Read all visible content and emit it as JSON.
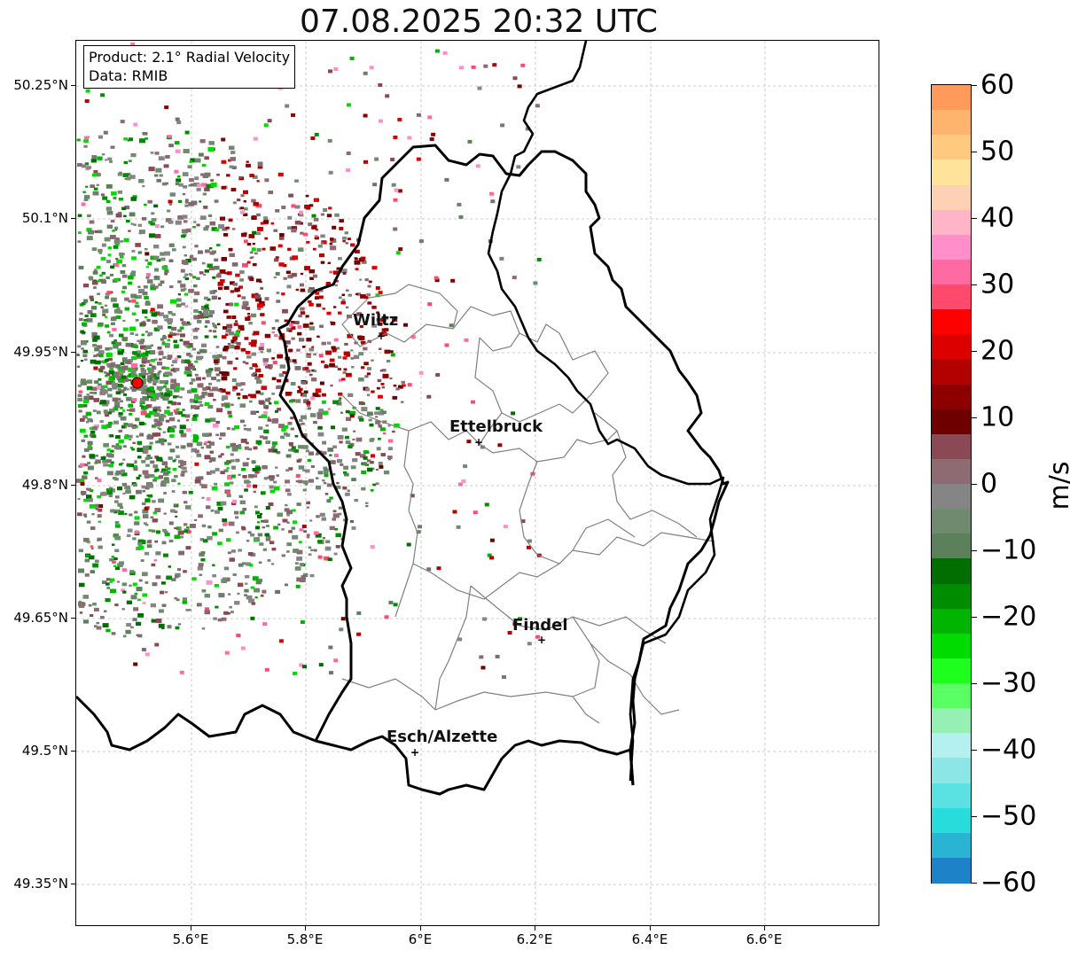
{
  "title": "07.08.2025 20:32 UTC",
  "info": {
    "product": "Product: 2.1° Radial Velocity",
    "data": "Data: RMIB"
  },
  "axes": {
    "lat_labels": [
      "50.25°N",
      "50.1°N",
      "49.95°N",
      "49.8°N",
      "49.65°N",
      "49.5°N",
      "49.35°N"
    ],
    "lon_labels": [
      "5.6°E",
      "5.8°E",
      "6°E",
      "6.2°E",
      "6.4°E",
      "6.6°E"
    ]
  },
  "cities": [
    {
      "name": "Wiltz"
    },
    {
      "name": "Ettelbruck"
    },
    {
      "name": "Findel"
    },
    {
      "name": "Esch/Alzette"
    }
  ],
  "colorbar": {
    "unit": "m/s",
    "tick_labels": [
      "60",
      "50",
      "40",
      "30",
      "20",
      "10",
      "0",
      "−10",
      "−20",
      "−30",
      "−40",
      "−50",
      "−60"
    ],
    "range": [
      -60,
      60
    ],
    "colors": [
      "#ff9a5a",
      "#ffb46e",
      "#ffc980",
      "#ffe39a",
      "#ffd1b4",
      "#ffb4c8",
      "#ff8ecb",
      "#ff6aa3",
      "#ff4a6e",
      "#ff0000",
      "#dd0000",
      "#b30000",
      "#8c0000",
      "#6e0000",
      "#8a4a55",
      "#8e6a72",
      "#858585",
      "#6f8a6f",
      "#5b805b",
      "#006e00",
      "#008c00",
      "#00b400",
      "#00dc00",
      "#1eff1e",
      "#5aff64",
      "#96f0b4",
      "#b4f0f0",
      "#8ce6e6",
      "#5ae1e1",
      "#28dcdc",
      "#28b4d2",
      "#1e82c8"
    ]
  },
  "radar": {
    "site_marker_color": "#ff0000"
  }
}
